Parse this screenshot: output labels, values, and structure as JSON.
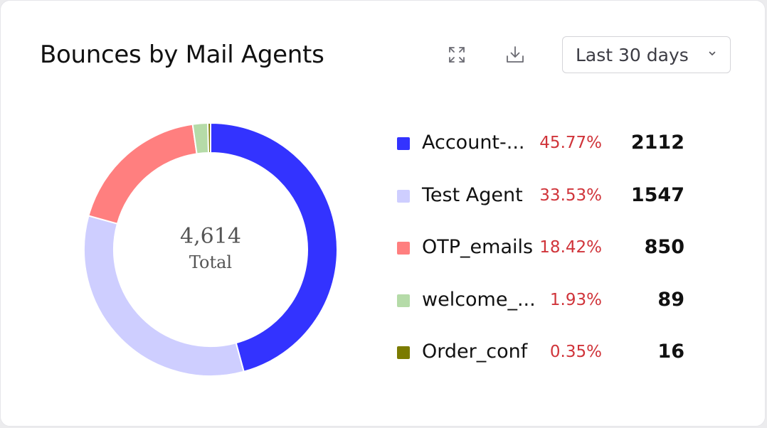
{
  "header": {
    "title": "Bounces by Mail Agents",
    "expand_icon": "expand-icon",
    "download_icon": "download-icon",
    "range_select": {
      "value": "Last 30 days",
      "icon": "chevron-down-icon"
    }
  },
  "center": {
    "total_value": "4,614",
    "total_label": "Total"
  },
  "chart_data": {
    "type": "pie",
    "donut": true,
    "total": 4614,
    "categories": [
      "Account-...",
      "Test Agent",
      "OTP_emails",
      "welcome_...",
      "Order_conf"
    ],
    "values": [
      2112,
      1547,
      850,
      89,
      16
    ],
    "percentages": [
      "45.77%",
      "33.53%",
      "18.42%",
      "1.93%",
      "0.35%"
    ],
    "colors": [
      "#3333ff",
      "#ceceff",
      "#ff7f7f",
      "#b5dba8",
      "#7b7b00"
    ],
    "legend_position": "right"
  },
  "legend": [
    {
      "name": "Account-...",
      "pct": "45.77%",
      "value": "2112"
    },
    {
      "name": "Test Agent",
      "pct": "33.53%",
      "value": "1547"
    },
    {
      "name": "OTP_emails",
      "pct": "18.42%",
      "value": "850"
    },
    {
      "name": "welcome_...",
      "pct": "1.93%",
      "value": "89"
    },
    {
      "name": "Order_conf",
      "pct": "0.35%",
      "value": "16"
    }
  ]
}
